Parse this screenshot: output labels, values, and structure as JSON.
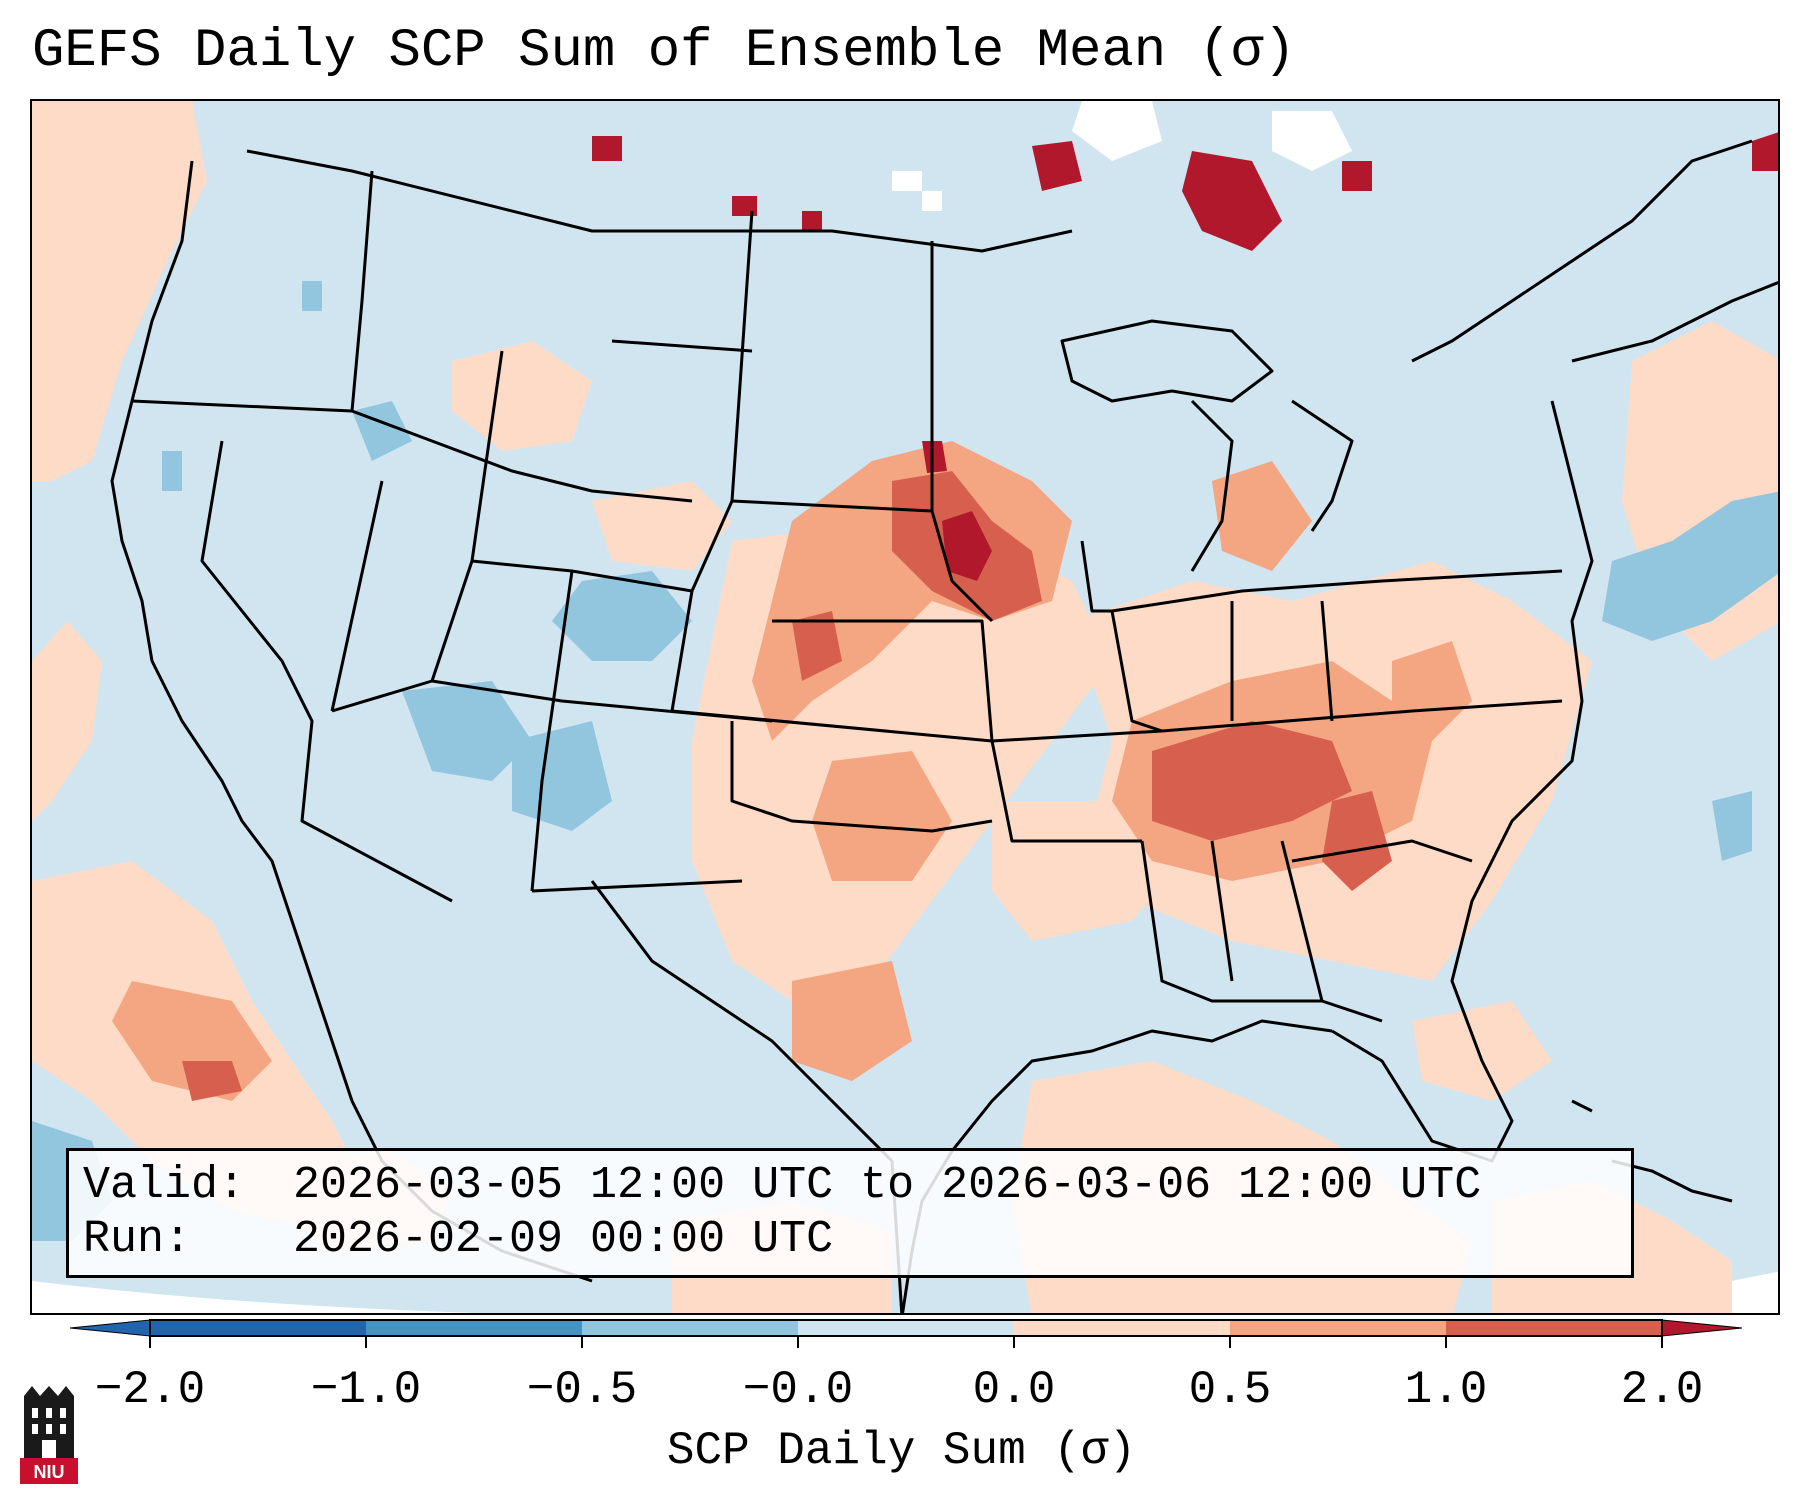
{
  "title": "GEFS Daily SCP Sum of Ensemble Mean (σ)",
  "info": {
    "valid_key": "Valid:",
    "valid_value": "2026-03-05 12:00 UTC to 2026-03-06 12:00 UTC",
    "run_key": "Run:",
    "run_value": "2026-02-09 00:00 UTC"
  },
  "colorbar": {
    "label": "SCP Daily Sum (σ)",
    "ticks": [
      "−2.0",
      "−1.0",
      "−0.5",
      "−0.0",
      "0.0",
      "0.5",
      "1.0",
      "2.0"
    ],
    "colors": [
      "#2166ac",
      "#4393c3",
      "#92c5de",
      "#d1e5f0",
      "#fddbc7",
      "#f4a582",
      "#d6604d",
      "#b2182b"
    ]
  },
  "logo": {
    "icon": "niu-logo-icon",
    "text": "NIU"
  }
}
